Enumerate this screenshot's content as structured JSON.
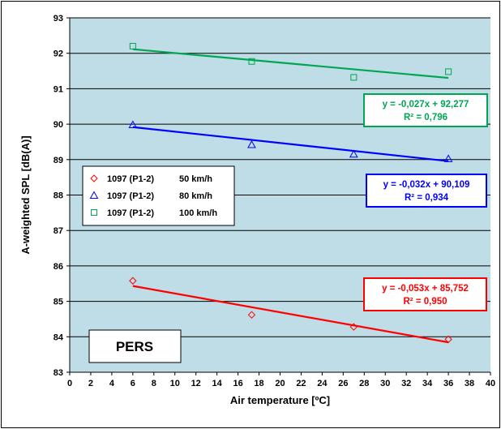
{
  "chart_data": {
    "type": "scatter",
    "xlabel": "Air temperature  [ºC]",
    "ylabel": "A-weighted SPL  [dB(A)]",
    "xlim": [
      0,
      40
    ],
    "ylim": [
      83,
      93
    ],
    "xticks": [
      "0",
      "2",
      "4",
      "6",
      "8",
      "10",
      "12",
      "14",
      "16",
      "18",
      "20",
      "22",
      "24",
      "26",
      "28",
      "30",
      "32",
      "34",
      "36",
      "38",
      "40"
    ],
    "yticks": [
      "83",
      "84",
      "85",
      "86",
      "87",
      "88",
      "89",
      "90",
      "91",
      "92",
      "93"
    ],
    "grid": "horizontal",
    "legend_position": "left",
    "tag": "PERS",
    "series": [
      {
        "name": "1097 (P1-2)  50 km/h",
        "marker": "diamond",
        "color": "#ff0000",
        "x": [
          6,
          17.3,
          27,
          36
        ],
        "y": [
          85.58,
          84.62,
          84.28,
          83.93
        ],
        "trendline": {
          "slope": -0.053,
          "intercept": 85.752,
          "x_range": [
            6,
            36
          ]
        },
        "equation": "y = -0,053x + 85,752",
        "r2": "R² = 0,950"
      },
      {
        "name": "1097 (P1-2)  80 km/h",
        "marker": "triangle",
        "color": "#0000ff",
        "x": [
          6,
          17.3,
          27,
          36
        ],
        "y": [
          89.98,
          89.42,
          89.15,
          89.02
        ],
        "trendline": {
          "slope": -0.032,
          "intercept": 90.109,
          "x_range": [
            6,
            36
          ]
        },
        "equation": "y = -0,032x + 90,109",
        "r2": "R² = 0,934"
      },
      {
        "name": "1097 (P1-2)  100 km/h",
        "marker": "square",
        "color": "#00a651",
        "x": [
          6,
          17.3,
          27,
          36
        ],
        "y": [
          92.2,
          91.77,
          91.32,
          91.48
        ],
        "trendline": {
          "slope": -0.027,
          "intercept": 92.277,
          "x_range": [
            6,
            36
          ]
        },
        "equation": "y = -0,027x + 92,277",
        "r2": "R² = 0,796"
      }
    ]
  },
  "colors": {
    "plot_background": "#bedde6",
    "gridline": "#000000"
  }
}
